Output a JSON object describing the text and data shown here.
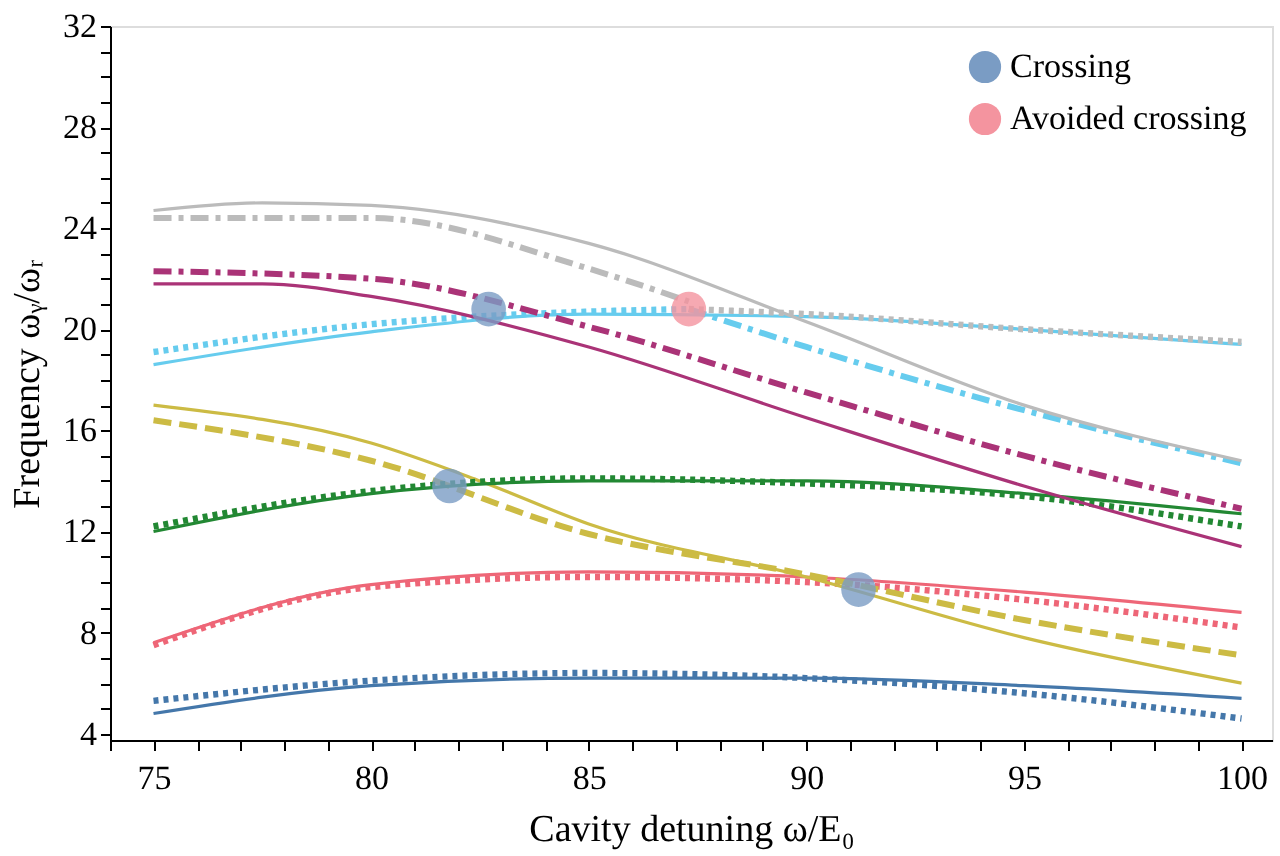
{
  "chart_data": {
    "type": "line",
    "xlabel": "Cavity detuning ω/E₀",
    "ylabel": "Frequency ωᵧ/ωᵣ",
    "xlim": [
      74,
      100.7
    ],
    "ylim": [
      3.75,
      32
    ],
    "xticks": [
      {
        "value": 74,
        "label": null
      },
      75,
      {
        "value": 76,
        "label": null
      },
      {
        "value": 77,
        "label": null
      },
      {
        "value": 78,
        "label": null
      },
      {
        "value": 79,
        "label": null
      },
      80,
      {
        "value": 81,
        "label": null
      },
      {
        "value": 82,
        "label": null
      },
      {
        "value": 83,
        "label": null
      },
      {
        "value": 84,
        "label": null
      },
      85,
      {
        "value": 86,
        "label": null
      },
      {
        "value": 87,
        "label": null
      },
      {
        "value": 88,
        "label": null
      },
      {
        "value": 89,
        "label": null
      },
      90,
      {
        "value": 91,
        "label": null
      },
      {
        "value": 92,
        "label": null
      },
      {
        "value": 93,
        "label": null
      },
      {
        "value": 94,
        "label": null
      },
      95,
      {
        "value": 96,
        "label": null
      },
      {
        "value": 97,
        "label": null
      },
      {
        "value": 98,
        "label": null
      },
      {
        "value": 99,
        "label": null
      },
      100
    ],
    "yticks": [
      4,
      {
        "value": 5,
        "label": null
      },
      {
        "value": 6,
        "label": null
      },
      {
        "value": 7,
        "label": null
      },
      8,
      {
        "value": 9,
        "label": null
      },
      {
        "value": 10,
        "label": null
      },
      {
        "value": 11,
        "label": null
      },
      12,
      {
        "value": 13,
        "label": null
      },
      {
        "value": 14,
        "label": null
      },
      {
        "value": 15,
        "label": null
      },
      16,
      {
        "value": 17,
        "label": null
      },
      {
        "value": 18,
        "label": null
      },
      {
        "value": 19,
        "label": null
      },
      20,
      {
        "value": 21,
        "label": null
      },
      {
        "value": 22,
        "label": null
      },
      {
        "value": 23,
        "label": null
      },
      24,
      {
        "value": 25,
        "label": null
      },
      {
        "value": 26,
        "label": null
      },
      {
        "value": 27,
        "label": null
      },
      28,
      {
        "value": 29,
        "label": null
      },
      {
        "value": 30,
        "label": null
      },
      {
        "value": 31,
        "label": null
      },
      32
    ],
    "grid": false,
    "legend": "top right",
    "marker": "none",
    "series": [
      {
        "color": "#4477aa",
        "line_style": "solid",
        "x": [
          75,
          80,
          85,
          90,
          95,
          100
        ],
        "values": [
          4.8,
          5.9,
          6.2,
          6.2,
          5.9,
          5.4
        ]
      },
      {
        "color": "#4477aa",
        "line_style": "dotted",
        "x": [
          75,
          80,
          85,
          90,
          95,
          100
        ],
        "values": [
          5.3,
          6.1,
          6.4,
          6.2,
          5.6,
          4.6
        ]
      },
      {
        "color": "#ee6677",
        "line_style": "solid",
        "x": [
          75,
          80,
          85,
          90,
          95,
          100
        ],
        "values": [
          7.6,
          9.9,
          10.4,
          10.2,
          9.6,
          8.8
        ]
      },
      {
        "color": "#ee6677",
        "line_style": "dotted",
        "x": [
          75,
          80,
          85,
          90,
          95,
          100
        ],
        "values": [
          7.5,
          9.8,
          10.2,
          10.0,
          9.3,
          8.2
        ]
      },
      {
        "color": "#ccbb44",
        "line_style": "solid",
        "x": [
          75,
          80,
          82.5,
          85,
          90,
          95,
          100
        ],
        "values": [
          17.0,
          15.5,
          14.0,
          12.3,
          10.2,
          7.8,
          6.0
        ]
      },
      {
        "color": "#ccbb44",
        "line_style": "dashed",
        "x": [
          75,
          80,
          85,
          90,
          95,
          100
        ],
        "values": [
          16.4,
          14.8,
          11.9,
          10.3,
          8.5,
          7.1
        ]
      },
      {
        "color": "#228833",
        "line_style": "solid",
        "x": [
          75,
          80,
          85,
          90,
          95,
          100
        ],
        "values": [
          12.0,
          13.5,
          14.0,
          14.0,
          13.5,
          12.7
        ]
      },
      {
        "color": "#228833",
        "line_style": "dotted",
        "x": [
          75,
          80,
          85,
          90,
          95,
          100
        ],
        "values": [
          12.2,
          13.6,
          14.1,
          13.9,
          13.4,
          12.2
        ]
      },
      {
        "color": "#66ccee",
        "line_style": "solid",
        "x": [
          75,
          80,
          85,
          90,
          95,
          100
        ],
        "values": [
          18.6,
          19.9,
          20.6,
          20.5,
          20.0,
          19.4
        ]
      },
      {
        "color": "#66ccee",
        "line_style": "dotted",
        "x": [
          75,
          80,
          85,
          87.3
        ],
        "values": [
          19.1,
          20.2,
          20.7,
          20.8
        ]
      },
      {
        "color": "#66ccee",
        "line_style": "dashdot",
        "x": [
          87.3,
          90,
          95,
          100
        ],
        "values": [
          20.8,
          19.3,
          16.8,
          14.7
        ]
      },
      {
        "color": "#bbbbbb",
        "line_style": "solid",
        "x": [
          75,
          77.5,
          80,
          85,
          90,
          95,
          100
        ],
        "values": [
          24.7,
          25.0,
          24.9,
          23.4,
          20.3,
          17.0,
          14.8
        ]
      },
      {
        "color": "#bbbbbb",
        "line_style": "dashdot",
        "x": [
          75,
          80,
          85,
          87.3
        ],
        "values": [
          24.4,
          24.4,
          22.4,
          21.1
        ]
      },
      {
        "color": "#bbbbbb",
        "line_style": "dotted",
        "x": [
          87.3,
          90,
          95,
          100
        ],
        "values": [
          20.8,
          20.6,
          20.0,
          19.5
        ]
      },
      {
        "color": "#aa3377",
        "line_style": "solid",
        "x": [
          75,
          77.5,
          80,
          85,
          90,
          95,
          100
        ],
        "values": [
          21.8,
          21.8,
          21.3,
          19.3,
          16.5,
          13.8,
          11.4
        ]
      },
      {
        "color": "#aa3377",
        "line_style": "dashdot",
        "x": [
          75,
          80,
          85,
          90,
          95,
          100
        ],
        "values": [
          22.3,
          22.0,
          20.1,
          17.5,
          15.0,
          12.9
        ]
      },
      {
        "type": "scatter",
        "name": "Crossing",
        "color": "#7a9cc4",
        "marker": "circle",
        "x": [
          82.7,
          81.8,
          91.2
        ],
        "values": [
          20.8,
          13.8,
          9.7
        ]
      },
      {
        "type": "scatter",
        "name": "Avoided crossing",
        "color": "#f4949f",
        "marker": "circle",
        "x": [
          87.3
        ],
        "values": [
          20.8
        ]
      }
    ]
  }
}
